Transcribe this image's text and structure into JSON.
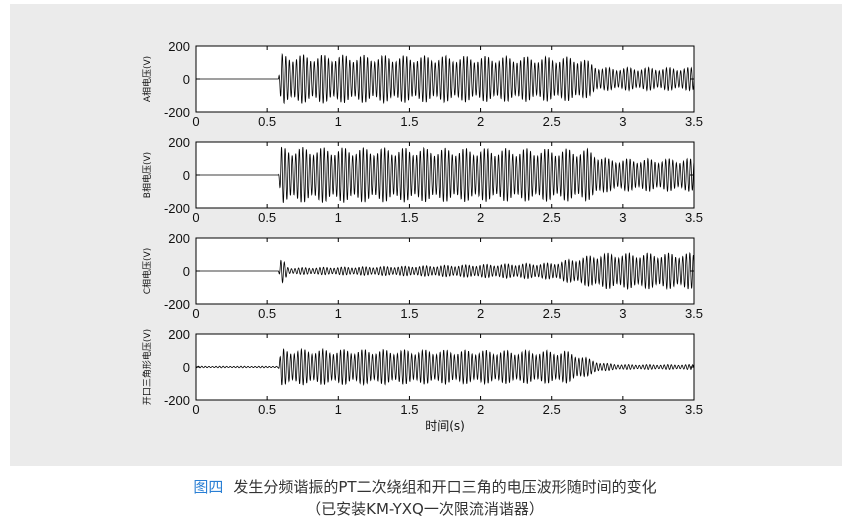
{
  "caption": {
    "figure_label": "图四",
    "title": "发生分频谐振的PT二次绕组和开口三角的电压波形随时间的变化",
    "subtitle": "（已安装KM-YXQ一次限流消谐器）"
  },
  "colors": {
    "panel_background": "#ebebeb",
    "plot_background": "#ffffff",
    "trace": "#000000",
    "caption_label": "#2a7fd4"
  },
  "chart_data": [
    {
      "type": "line",
      "ylabel": "A相电压(V)",
      "xlabel": "",
      "xlim": [
        0,
        3.5
      ],
      "ylim": [
        -200,
        200
      ],
      "xticks": [
        "0",
        "0.5",
        "1",
        "1.5",
        "2",
        "2.5",
        "3",
        "3.5"
      ],
      "yticks": [
        "200",
        "0",
        "-200"
      ],
      "grid": false,
      "envelope": {
        "t": [
          0,
          0.58,
          0.6,
          2.7,
          2.85,
          3.5
        ],
        "amp": [
          0,
          0,
          150,
          135,
          70,
          70
        ]
      }
    },
    {
      "type": "line",
      "ylabel": "B相电压(V)",
      "xlabel": "",
      "xlim": [
        0,
        3.5
      ],
      "ylim": [
        -200,
        200
      ],
      "xticks": [
        "0",
        "0.5",
        "1",
        "1.5",
        "2",
        "2.5",
        "3",
        "3.5"
      ],
      "yticks": [
        "200",
        "0",
        "-200"
      ],
      "grid": false,
      "envelope": {
        "t": [
          0,
          0.58,
          0.6,
          2.75,
          2.9,
          3.5
        ],
        "amp": [
          0,
          0,
          170,
          160,
          100,
          100
        ]
      }
    },
    {
      "type": "line",
      "ylabel": "C相电压(V)",
      "xlabel": "",
      "xlim": [
        0,
        3.5
      ],
      "ylim": [
        -200,
        200
      ],
      "xticks": [
        "0",
        "0.5",
        "1",
        "1.5",
        "2",
        "2.5",
        "3",
        "3.5"
      ],
      "yticks": [
        "200",
        "0",
        "-200"
      ],
      "grid": false,
      "envelope": {
        "t": [
          0,
          0.58,
          0.6,
          0.65,
          1.5,
          2.5,
          2.85,
          3.5
        ],
        "amp": [
          0,
          0,
          80,
          20,
          30,
          50,
          110,
          110
        ]
      }
    },
    {
      "type": "line",
      "ylabel": "开口三角形电压(V)",
      "xlabel": "时间(s)",
      "xlim": [
        0,
        3.5
      ],
      "ylim": [
        -200,
        200
      ],
      "xticks": [
        "0",
        "0.5",
        "1",
        "1.5",
        "2",
        "2.5",
        "3",
        "3.5"
      ],
      "yticks": [
        "200",
        "0",
        "-200"
      ],
      "grid": false,
      "envelope": {
        "t": [
          0,
          0.58,
          0.6,
          2.6,
          2.85,
          3.0,
          3.5
        ],
        "amp": [
          5,
          5,
          110,
          100,
          25,
          15,
          15
        ]
      }
    }
  ]
}
